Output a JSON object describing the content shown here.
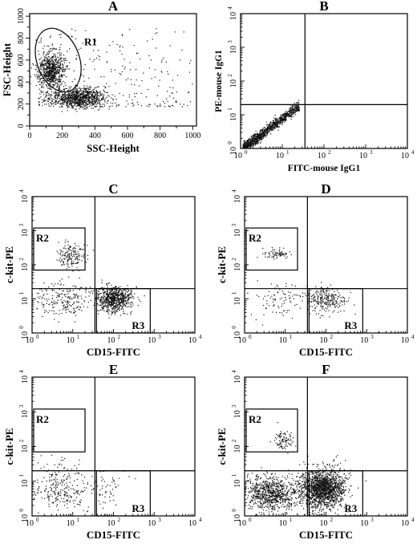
{
  "chart_data": [
    {
      "id": "A",
      "type": "scatter",
      "panel_label": "A",
      "xlabel": "SSC-Height",
      "ylabel": "FSC-Height",
      "x_scale": "linear",
      "y_scale": "linear",
      "xlim": [
        0,
        1023
      ],
      "ylim": [
        0,
        1023
      ],
      "xticks": [
        0,
        200,
        400,
        600,
        800,
        1000
      ],
      "yticks": [
        0,
        200,
        400,
        600,
        800,
        1000
      ],
      "gates": [
        {
          "name": "R1",
          "shape": "ellipse",
          "cx": 175,
          "cy": 600,
          "rx": 130,
          "ry": 300,
          "rotation_deg": -20
        }
      ],
      "clusters": [
        {
          "label": "lymphocyte cluster",
          "x_center": 130,
          "y_center": 500,
          "x_spread": 40,
          "y_spread": 90,
          "n": 700
        },
        {
          "label": "granulocyte cluster",
          "x_center": 300,
          "y_center": 260,
          "x_spread": 80,
          "y_spread": 45,
          "n": 900
        },
        {
          "label": "background",
          "x_range": [
            50,
            1000
          ],
          "y_range": [
            180,
            900
          ],
          "n": 350
        }
      ]
    },
    {
      "id": "B",
      "type": "scatter",
      "panel_label": "B",
      "xlabel": "FITC-mouse IgG1",
      "ylabel": "PE-mouse IgG1",
      "x_scale": "log",
      "y_scale": "log",
      "xlim": [
        1,
        10000
      ],
      "ylim": [
        1,
        10000
      ],
      "xticks": [
        1,
        10,
        100,
        1000,
        10000
      ],
      "yticks": [
        1,
        10,
        100,
        1000,
        10000
      ],
      "tick_labels": [
        "10",
        "10",
        "10",
        "10",
        "10"
      ],
      "tick_exponents": [
        "0",
        "1",
        "2",
        "3",
        "4"
      ],
      "quadrant": {
        "x": 35,
        "y": 20
      },
      "clusters": [
        {
          "label": "isotype control diagonal",
          "diagonal": true,
          "x_log_range": [
            0.05,
            1.4
          ],
          "n": 1200
        }
      ]
    },
    {
      "id": "C",
      "type": "scatter",
      "panel_label": "C",
      "xlabel": "CD15-FITC",
      "ylabel": "c-kit-PE",
      "x_scale": "log",
      "y_scale": "log",
      "xlim": [
        1,
        10000
      ],
      "ylim": [
        1,
        10000
      ],
      "quadrant": {
        "x": 35,
        "y": 20
      },
      "gates": [
        {
          "name": "R2",
          "shape": "rect",
          "x": [
            1,
            20
          ],
          "y": [
            70,
            1200
          ]
        },
        {
          "name": "R3",
          "shape": "rect",
          "x": [
            35,
            800
          ],
          "y": [
            1,
            20
          ]
        }
      ],
      "clusters": [
        {
          "label": "c-kit+ cluster",
          "x_log_center": 0.95,
          "y_log_center": 2.3,
          "x_spread": 0.18,
          "y_spread": 0.18,
          "n": 160
        },
        {
          "label": "CD15+ cluster",
          "x_log_center": 2.0,
          "y_log_center": 1.0,
          "x_spread": 0.22,
          "y_spread": 0.18,
          "n": 700
        },
        {
          "label": "double-negative",
          "x_log_center": 0.8,
          "y_log_center": 1.0,
          "x_spread": 0.35,
          "y_spread": 0.25,
          "n": 220
        }
      ]
    },
    {
      "id": "D",
      "type": "scatter",
      "panel_label": "D",
      "xlabel": "CD15-FITC",
      "ylabel": "c-kit-PE",
      "x_scale": "log",
      "y_scale": "log",
      "xlim": [
        1,
        10000
      ],
      "ylim": [
        1,
        10000
      ],
      "quadrant": {
        "x": 35,
        "y": 20
      },
      "gates": [
        {
          "name": "R2",
          "shape": "rect",
          "x": [
            1,
            20
          ],
          "y": [
            70,
            1200
          ]
        },
        {
          "name": "R3",
          "shape": "rect",
          "x": [
            35,
            800
          ],
          "y": [
            1,
            20
          ]
        }
      ],
      "clusters": [
        {
          "label": "c-kit+ cluster",
          "x_log_center": 0.8,
          "y_log_center": 2.35,
          "x_spread": 0.15,
          "y_spread": 0.08,
          "n": 70
        },
        {
          "label": "CD15+ cluster",
          "x_log_center": 2.0,
          "y_log_center": 1.0,
          "x_spread": 0.25,
          "y_spread": 0.2,
          "n": 260
        },
        {
          "label": "double-negative",
          "x_log_center": 0.8,
          "y_log_center": 1.0,
          "x_spread": 0.35,
          "y_spread": 0.25,
          "n": 90
        }
      ]
    },
    {
      "id": "E",
      "type": "scatter",
      "panel_label": "E",
      "xlabel": "CD15-FITC",
      "ylabel": "c-kit-PE",
      "x_scale": "log",
      "y_scale": "log",
      "xlim": [
        1,
        10000
      ],
      "ylim": [
        1,
        10000
      ],
      "quadrant": {
        "x": 35,
        "y": 20
      },
      "gates": [
        {
          "name": "R2",
          "shape": "rect",
          "x": [
            1,
            20
          ],
          "y": [
            70,
            1200
          ]
        },
        {
          "name": "R3",
          "shape": "rect",
          "x": [
            35,
            800
          ],
          "y": [
            1,
            20
          ]
        }
      ],
      "clusters": [
        {
          "label": "double-negative",
          "x_log_center": 0.7,
          "y_log_center": 0.8,
          "x_spread": 0.4,
          "y_spread": 0.35,
          "n": 280
        },
        {
          "label": "CD15+ sparse",
          "x_log_center": 1.8,
          "y_log_center": 0.8,
          "x_spread": 0.25,
          "y_spread": 0.3,
          "n": 50
        }
      ]
    },
    {
      "id": "F",
      "type": "scatter",
      "panel_label": "F",
      "xlabel": "CD15-FITC",
      "ylabel": "c-kit-PE",
      "x_scale": "log",
      "y_scale": "log",
      "xlim": [
        1,
        10000
      ],
      "ylim": [
        1,
        10000
      ],
      "quadrant": {
        "x": 35,
        "y": 20
      },
      "gates": [
        {
          "name": "R2",
          "shape": "rect",
          "x": [
            1,
            20
          ],
          "y": [
            70,
            1200
          ]
        },
        {
          "name": "R3",
          "shape": "rect",
          "x": [
            35,
            800
          ],
          "y": [
            1,
            20
          ]
        }
      ],
      "clusters": [
        {
          "label": "c-kit+ cluster",
          "x_log_center": 0.95,
          "y_log_center": 2.2,
          "x_spread": 0.12,
          "y_spread": 0.15,
          "n": 90
        },
        {
          "label": "CD15+ dense cluster",
          "x_log_center": 1.9,
          "y_log_center": 0.8,
          "x_spread": 0.28,
          "y_spread": 0.28,
          "n": 1600
        },
        {
          "label": "double-negative dense",
          "x_log_center": 0.65,
          "y_log_center": 0.65,
          "x_spread": 0.32,
          "y_spread": 0.25,
          "n": 800
        }
      ]
    }
  ]
}
